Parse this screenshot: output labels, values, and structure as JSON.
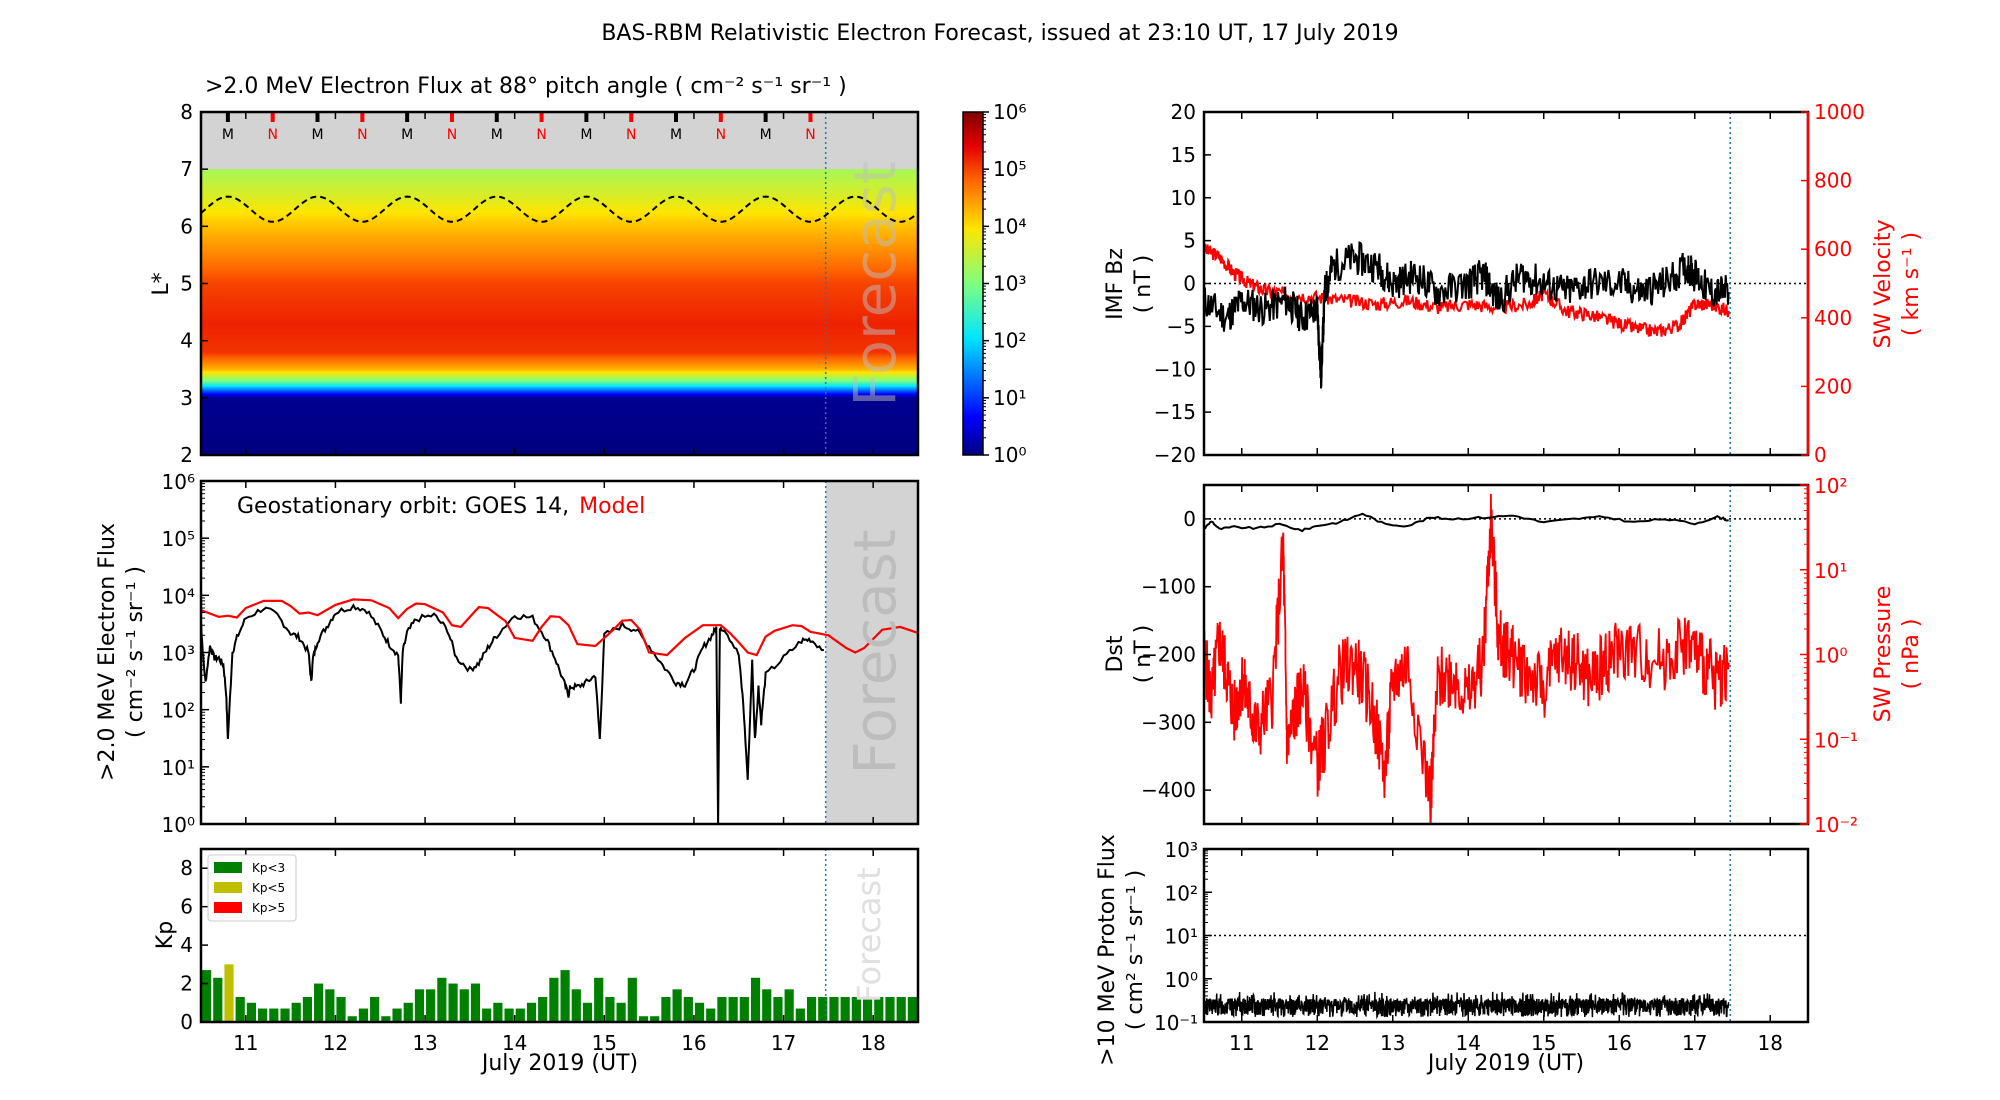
{
  "figure": {
    "title": "BAS-RBM Relativistic Electron Forecast, issued at 23:10 UT, 17 July 2019"
  },
  "chart_data": [
    {
      "id": "lstar_flux",
      "type": "heatmap",
      "title": ">2.0 MeV Electron Flux at 88° pitch angle ( cm⁻² s⁻¹ sr⁻¹ )",
      "ylabel": "L*",
      "ylim": [
        2,
        8
      ],
      "yticks": [
        "2",
        "3",
        "4",
        "5",
        "6",
        "7",
        "8"
      ],
      "xlim": [
        10.5,
        18.5
      ],
      "colorbar": {
        "scale": "log",
        "range": [
          1,
          1000000
        ],
        "ticks": [
          "10⁰",
          "10¹",
          "10²",
          "10³",
          "10⁴",
          "10⁵",
          "10⁶"
        ]
      },
      "profile_by_L": [
        [
          2,
          0
        ],
        [
          3.0,
          0.1
        ],
        [
          3.1,
          1.0
        ],
        [
          3.2,
          2.0
        ],
        [
          3.3,
          3.0
        ],
        [
          3.5,
          4.3
        ],
        [
          3.8,
          5.1
        ],
        [
          4.3,
          5.2
        ],
        [
          5.0,
          5.0
        ],
        [
          5.5,
          4.6
        ],
        [
          6.0,
          4.2
        ],
        [
          6.5,
          3.7
        ],
        [
          7.0,
          3.3
        ]
      ],
      "grey_region_L": [
        7,
        8
      ],
      "plasmapause_mean_L": 6.3,
      "plasmapause_amplitude": 0.22,
      "mn_markers": [
        "M",
        "N",
        "M",
        "N",
        "M",
        "N",
        "M",
        "N",
        "M",
        "N",
        "M",
        "N",
        "M",
        "N"
      ],
      "mn_marker_times": [
        10.8,
        11.3,
        11.8,
        12.3,
        12.8,
        13.3,
        13.8,
        14.3,
        14.8,
        15.3,
        15.8,
        16.3,
        16.8,
        17.3
      ],
      "forecast_start": 17.47,
      "forecast_label": "Forecast"
    },
    {
      "id": "geo_flux",
      "type": "line",
      "ylabel_line1": ">2.0 MeV Electron Flux",
      "ylabel_line2": "( cm⁻² s⁻¹ sr⁻¹ )",
      "yscale": "log",
      "ylim": [
        1,
        1000000
      ],
      "yticks": [
        "10⁰",
        "10¹",
        "10²",
        "10³",
        "10⁴",
        "10⁵",
        "10⁶"
      ],
      "xlim": [
        10.5,
        18.5
      ],
      "annotation_prefix": "Geostationary orbit:   GOES 14,",
      "annotation_model": "Model",
      "forecast_label": "Forecast",
      "forecast_start": 17.47,
      "series": [
        {
          "name": "GOES 14",
          "color": "#000000",
          "x": [
            10.5,
            10.52,
            10.55,
            10.6,
            10.65,
            10.7,
            10.75,
            10.78,
            10.8,
            10.85,
            10.9,
            11.0,
            11.2,
            11.35,
            11.5,
            11.6,
            11.7,
            11.73,
            11.75,
            11.8,
            11.9,
            12.0,
            12.2,
            12.35,
            12.5,
            12.6,
            12.7,
            12.73,
            12.75,
            12.8,
            12.9,
            13.1,
            13.25,
            13.35,
            13.5,
            13.6,
            13.7,
            13.8,
            14.0,
            14.2,
            14.35,
            14.45,
            14.55,
            14.6,
            14.62,
            14.7,
            14.8,
            14.9,
            14.95,
            15.0,
            15.2,
            15.35,
            15.5,
            15.65,
            15.8,
            15.9,
            16.0,
            16.1,
            16.2,
            16.25,
            16.27,
            16.29,
            16.35,
            16.5,
            16.55,
            16.6,
            16.65,
            16.68,
            16.72,
            16.75,
            16.8,
            17.0,
            17.2,
            17.3,
            17.45
          ],
          "y": [
            3500,
            1000,
            300,
            1300,
            800,
            800,
            600,
            200,
            30,
            1000,
            1800,
            4000,
            6000,
            4500,
            2200,
            1800,
            1000,
            300,
            800,
            1600,
            2800,
            5000,
            6500,
            5500,
            2500,
            1400,
            900,
            140,
            1000,
            2200,
            3800,
            4500,
            2500,
            800,
            500,
            650,
            1200,
            2000,
            4500,
            4000,
            1800,
            800,
            300,
            180,
            250,
            250,
            300,
            400,
            30,
            2000,
            3000,
            2500,
            1300,
            600,
            300,
            280,
            500,
            1200,
            2000,
            2700,
            1.0,
            2800,
            2500,
            900,
            130,
            6,
            700,
            30,
            250,
            60,
            400,
            800,
            1600,
            1700,
            1100
          ]
        },
        {
          "name": "Model",
          "color": "#ff0000",
          "x": [
            10.5,
            10.7,
            10.8,
            10.9,
            11.0,
            11.2,
            11.4,
            11.5,
            11.6,
            11.7,
            11.8,
            12.0,
            12.2,
            12.4,
            12.6,
            12.7,
            12.8,
            12.9,
            13.0,
            13.2,
            13.3,
            13.4,
            13.5,
            13.6,
            13.7,
            13.9,
            14.0,
            14.2,
            14.3,
            14.4,
            14.5,
            14.6,
            14.7,
            14.9,
            15.1,
            15.2,
            15.3,
            15.4,
            15.5,
            15.7,
            15.9,
            16.1,
            16.3,
            16.4,
            16.5,
            16.6,
            16.7,
            16.8,
            16.9,
            17.1,
            17.2,
            17.3,
            17.5,
            17.7,
            17.8,
            17.9,
            18.1,
            18.3,
            18.5
          ],
          "y": [
            5500,
            4200,
            4400,
            4100,
            6000,
            8000,
            8000,
            6500,
            4800,
            5000,
            4500,
            6800,
            8500,
            8200,
            6000,
            4000,
            5800,
            7200,
            7000,
            5000,
            3000,
            2800,
            4200,
            6200,
            6000,
            3500,
            1800,
            1600,
            2800,
            4300,
            4200,
            3000,
            1400,
            1300,
            2500,
            3600,
            3700,
            2500,
            1000,
            900,
            1800,
            3000,
            3000,
            2200,
            1500,
            1000,
            900,
            1900,
            2400,
            3000,
            2900,
            2300,
            2000,
            1200,
            1000,
            1200,
            2500,
            2800,
            2200
          ]
        }
      ]
    },
    {
      "id": "kp",
      "type": "bar",
      "ylabel": "Kp",
      "ylim": [
        0,
        9
      ],
      "yticks": [
        "0",
        "2",
        "4",
        "6",
        "8"
      ],
      "xlim": [
        10.5,
        18.5
      ],
      "xticks": [
        "11",
        "12",
        "13",
        "14",
        "15",
        "16",
        "17",
        "18"
      ],
      "xlabel": "July 2019 (UT)",
      "bin_hours": 3,
      "start": 10.5,
      "values": [
        2.7,
        2.3,
        3.0,
        1.3,
        1.0,
        0.7,
        0.7,
        0.7,
        1.0,
        1.3,
        2.0,
        1.7,
        1.3,
        0.3,
        0.7,
        1.3,
        0.3,
        0.7,
        1.0,
        1.7,
        1.7,
        2.3,
        2.0,
        1.7,
        2.0,
        0.7,
        1.0,
        0.7,
        0.7,
        1.0,
        1.3,
        2.3,
        2.7,
        1.7,
        1.0,
        2.3,
        1.3,
        1.0,
        2.3,
        0.3,
        0.3,
        1.3,
        1.7,
        1.3,
        1.0,
        0.7,
        1.3,
        1.3,
        1.3,
        2.3,
        1.7,
        1.3,
        1.7,
        0.7,
        1.3,
        1.3,
        1.3,
        1.3,
        1.3,
        1.3,
        1.3,
        1.3,
        1.3,
        1.3
      ],
      "legend": [
        {
          "label": "Kp<3",
          "color": "#008000"
        },
        {
          "label": "Kp<5",
          "color": "#bfbf00"
        },
        {
          "label": "Kp>5",
          "color": "#ff0000"
        }
      ],
      "legend_position": "top-left",
      "forecast_label": "Forecast",
      "forecast_start": 17.47
    },
    {
      "id": "imf_sw",
      "type": "line",
      "ylabel_left_line1": "IMF Bz",
      "ylabel_left_line2": "( nT )",
      "ylim_left": [
        -20,
        20
      ],
      "yticks_left": [
        "−20",
        "−15",
        "−10",
        "−5",
        "0",
        "5",
        "10",
        "15",
        "20"
      ],
      "ylabel_right_line1": "SW Velocity",
      "ylabel_right_line2": "( km s⁻¹ )",
      "ylim_right": [
        0,
        1000
      ],
      "yticks_right": [
        "0",
        "200",
        "400",
        "600",
        "800",
        "1000"
      ],
      "xlim": [
        10.5,
        18.5
      ],
      "forecast_start": 17.47,
      "series": [
        {
          "name": "IMF Bz",
          "color": "#000000",
          "x": [
            10.5,
            10.8,
            11.0,
            11.3,
            11.6,
            11.8,
            12.0,
            12.05,
            12.1,
            12.2,
            12.5,
            12.8,
            13.0,
            13.3,
            13.6,
            14.0,
            14.2,
            14.4,
            14.7,
            15.0,
            15.3,
            15.6,
            16.0,
            16.3,
            16.6,
            16.9,
            17.0,
            17.2,
            17.45
          ],
          "y": [
            -2,
            -4,
            -2,
            -3,
            -2,
            -4,
            -3,
            -11,
            -1,
            2,
            3,
            2,
            0,
            1,
            -1,
            0,
            1,
            -2,
            1,
            0,
            -1,
            0,
            0,
            -1,
            0,
            2,
            1,
            -1,
            -1
          ]
        },
        {
          "name": "SW Velocity",
          "color": "#ff0000",
          "x": [
            10.5,
            10.7,
            10.9,
            11.1,
            11.3,
            11.6,
            12.0,
            12.4,
            12.8,
            13.2,
            13.6,
            14.0,
            14.4,
            14.8,
            15.0,
            15.3,
            15.6,
            15.9,
            16.2,
            16.5,
            16.8,
            17.0,
            17.2,
            17.45
          ],
          "y": [
            600,
            580,
            530,
            500,
            480,
            470,
            460,
            450,
            440,
            450,
            430,
            440,
            430,
            440,
            470,
            420,
            410,
            390,
            370,
            360,
            380,
            440,
            440,
            420
          ]
        }
      ],
      "reference_line": 0
    },
    {
      "id": "dst_pressure",
      "type": "line",
      "ylabel_left_line1": "Dst",
      "ylabel_left_line2": "( nT )",
      "ylim_left": [
        -450,
        50
      ],
      "yticks_left": [
        "−400",
        "−300",
        "−200",
        "−100",
        "0"
      ],
      "ylabel_right_line1": "SW Pressure",
      "ylabel_right_line2": "( nPa )",
      "ylim_right": [
        0.01,
        100
      ],
      "yticks_right": [
        "10⁻²",
        "10⁻¹",
        "10⁰",
        "10¹",
        "10²"
      ],
      "xlim": [
        10.5,
        18.5
      ],
      "forecast_start": 17.47,
      "series": [
        {
          "name": "Dst",
          "color": "#000000",
          "x": [
            10.5,
            10.6,
            10.7,
            10.9,
            11.2,
            11.5,
            11.8,
            12.0,
            12.3,
            12.6,
            12.9,
            13.2,
            13.5,
            13.8,
            14.2,
            14.6,
            15.0,
            15.4,
            15.8,
            16.2,
            16.6,
            17.0,
            17.3,
            17.45
          ],
          "y": [
            -15,
            -3,
            -15,
            -12,
            -14,
            -8,
            -17,
            -10,
            -5,
            8,
            -8,
            -10,
            2,
            0,
            2,
            5,
            -5,
            0,
            3,
            -5,
            0,
            -7,
            3,
            -2
          ]
        },
        {
          "name": "SW Pressure",
          "color": "#ff0000",
          "x": [
            10.5,
            10.6,
            10.7,
            10.8,
            10.9,
            11.0,
            11.1,
            11.2,
            11.4,
            11.55,
            11.6,
            11.7,
            11.8,
            12.0,
            12.1,
            12.3,
            12.5,
            12.7,
            12.9,
            13.0,
            13.2,
            13.5,
            13.6,
            13.8,
            14.0,
            14.2,
            14.3,
            14.4,
            14.5,
            14.6,
            14.8,
            15.0,
            15.2,
            15.4,
            15.6,
            15.8,
            16.0,
            16.3,
            16.6,
            16.9,
            17.1,
            17.3,
            17.45
          ],
          "y": [
            1.0,
            0.3,
            1.5,
            0.6,
            0.2,
            0.5,
            0.25,
            0.12,
            0.3,
            20,
            0.08,
            0.2,
            0.4,
            0.05,
            0.1,
            0.6,
            0.8,
            0.3,
            0.04,
            0.5,
            0.8,
            0.02,
            0.5,
            0.6,
            0.3,
            0.9,
            40,
            1.5,
            1.2,
            0.9,
            0.6,
            0.4,
            1.0,
            0.9,
            0.5,
            0.8,
            1.2,
            1.0,
            0.9,
            1.5,
            0.8,
            0.5,
            0.8
          ]
        }
      ],
      "reference_line": 0
    },
    {
      "id": "proton_flux",
      "type": "line",
      "ylabel_line1": ">10 MeV Proton Flux",
      "ylabel_line2": "( cm² s⁻¹ sr⁻¹ )",
      "yscale": "log",
      "ylim": [
        0.1,
        1000
      ],
      "yticks": [
        "10⁻¹",
        "10⁰",
        "10¹",
        "10²",
        "10³"
      ],
      "xlim": [
        10.5,
        18.5
      ],
      "xticks": [
        "11",
        "12",
        "13",
        "14",
        "15",
        "16",
        "17",
        "18"
      ],
      "xlabel": "July 2019 (UT)",
      "threshold": 10,
      "forecast_start": 17.47,
      "series": [
        {
          "name": "Proton flux",
          "color": "#000000",
          "mean": 0.25,
          "range": [
            0.13,
            0.5
          ],
          "x_end": 17.45
        }
      ]
    }
  ]
}
